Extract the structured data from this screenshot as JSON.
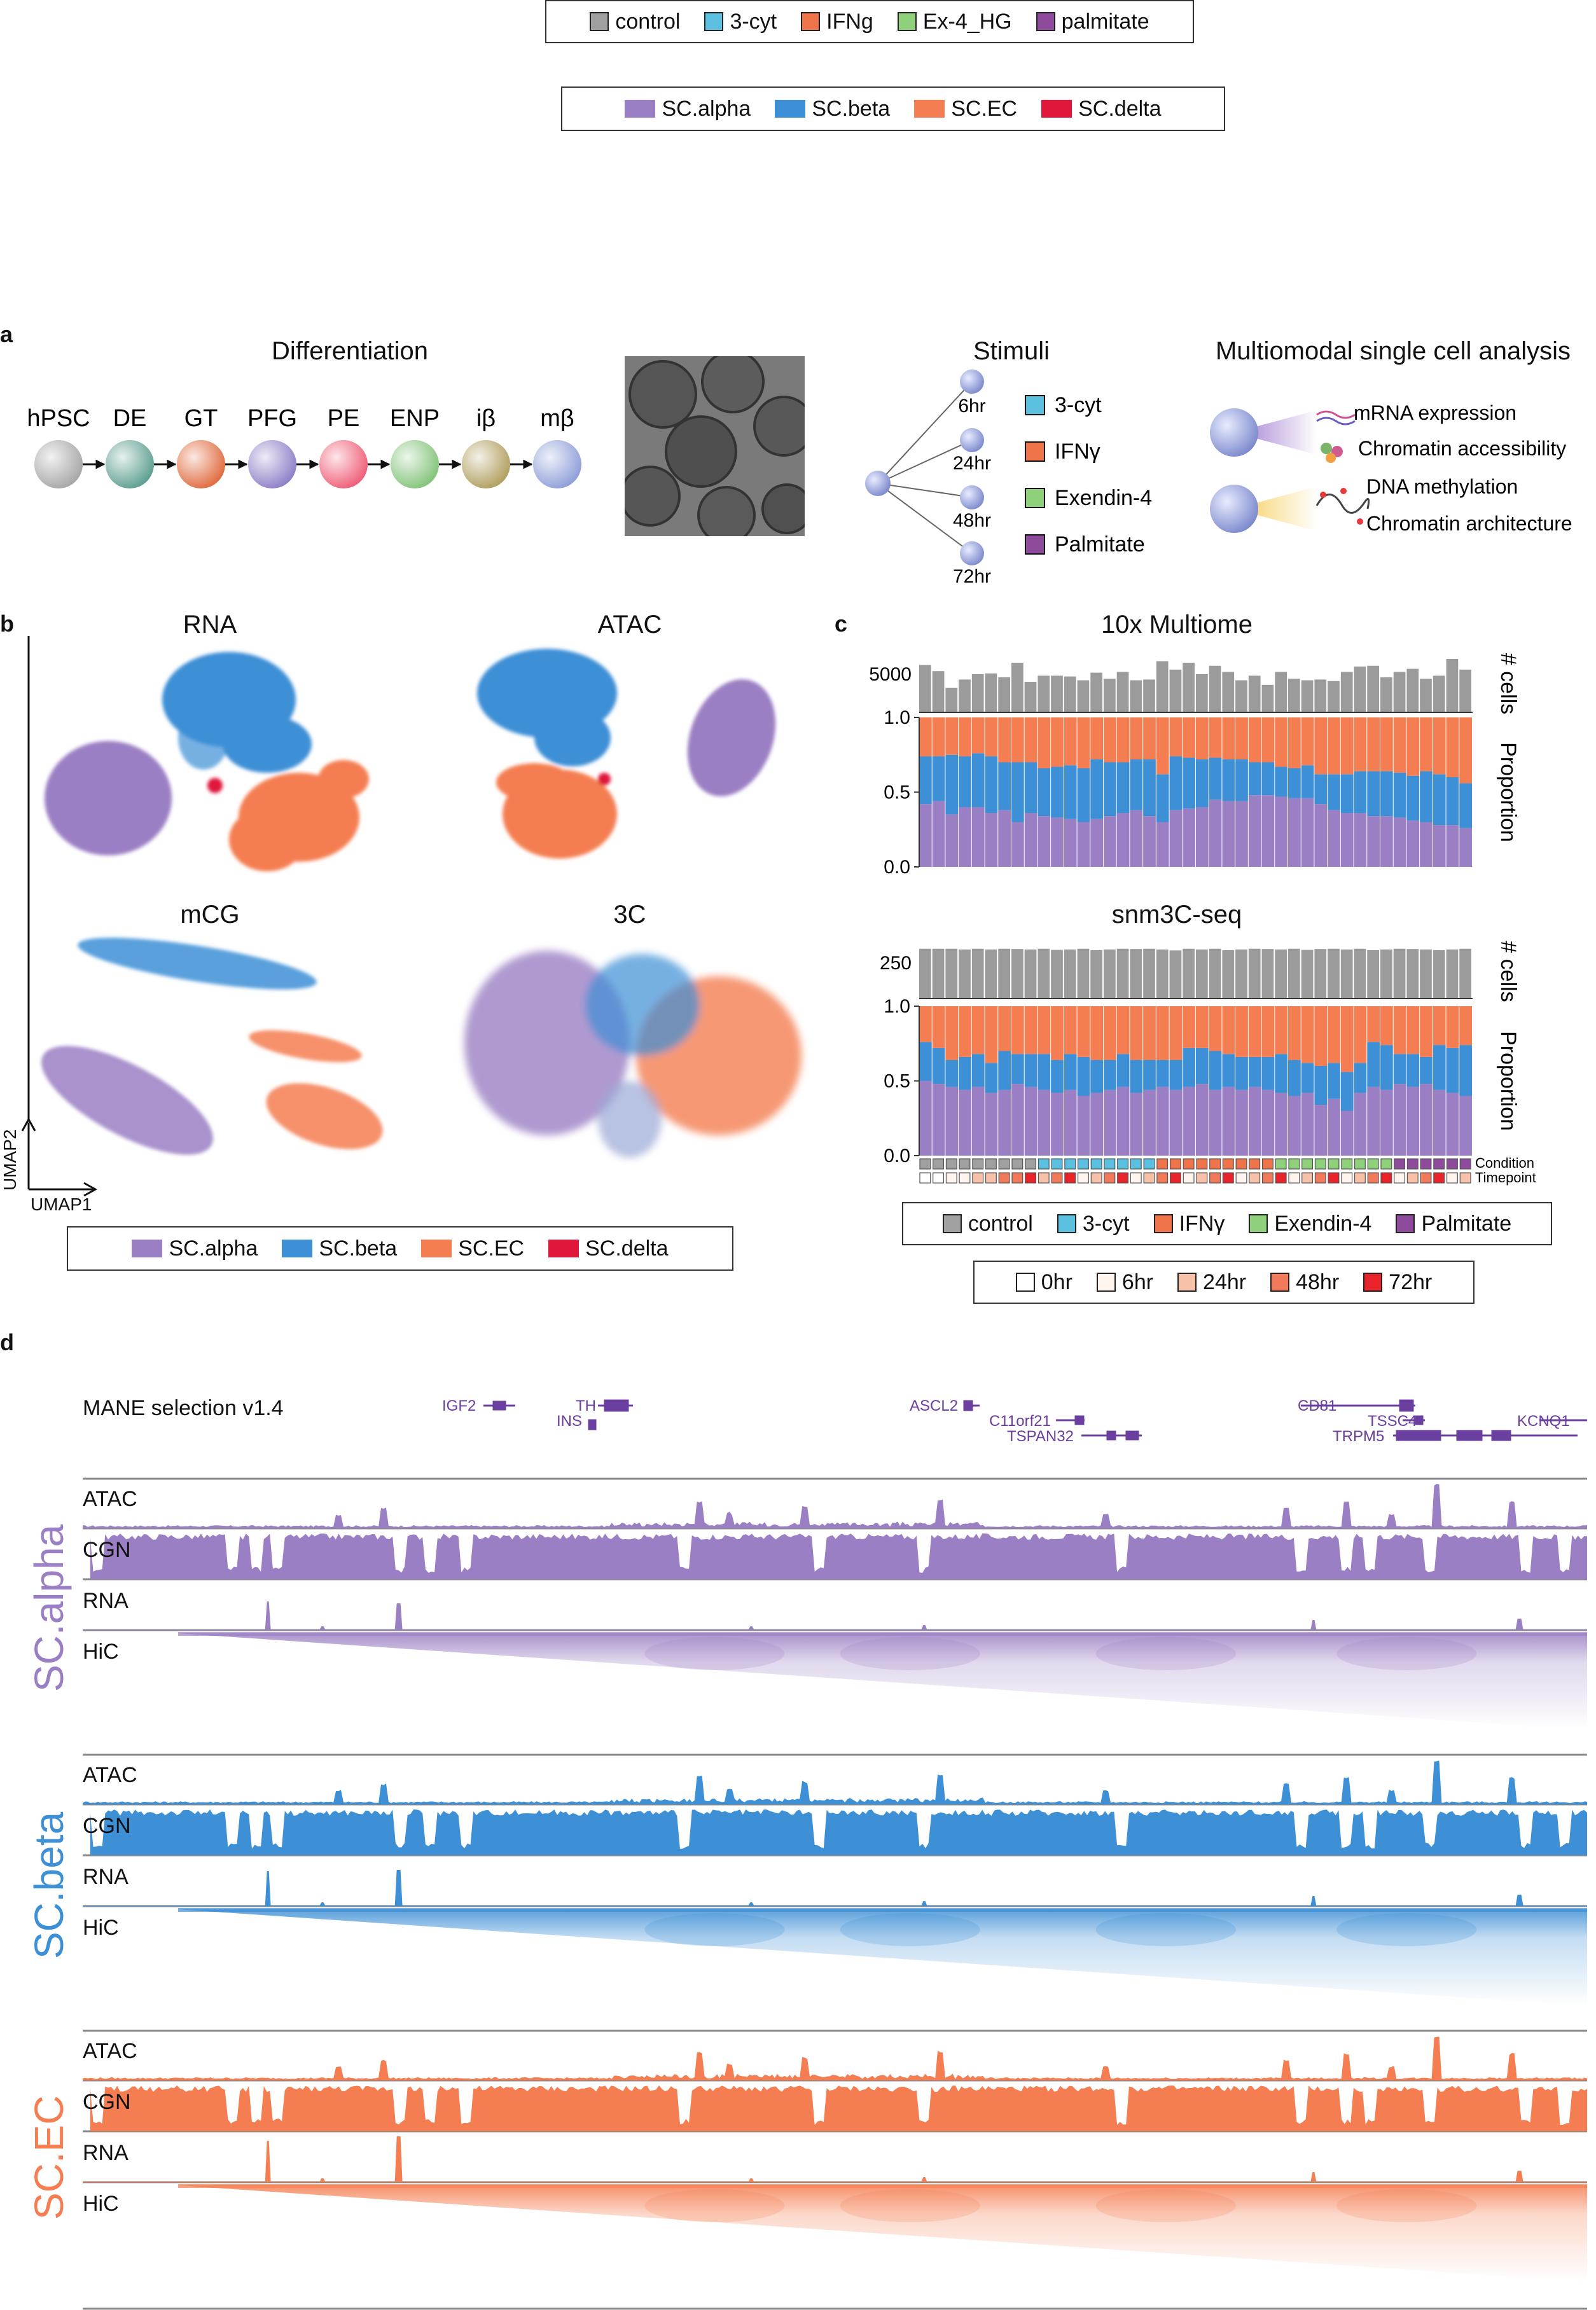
{
  "legend_conditions": {
    "items": [
      {
        "label": "control",
        "color": "#a0a0a0"
      },
      {
        "label": "3-cyt",
        "color": "#5bc0e0"
      },
      {
        "label": "IFNg",
        "color": "#f0744a"
      },
      {
        "label": "Ex-4_HG",
        "color": "#8fd07a"
      },
      {
        "label": "palmitate",
        "color": "#8e4b9c"
      }
    ]
  },
  "legend_celltypes_top": {
    "items": [
      {
        "label": "SC.alpha",
        "color": "#9b7fc4"
      },
      {
        "label": "SC.beta",
        "color": "#3d8fd6"
      },
      {
        "label": "SC.EC",
        "color": "#f47e51"
      },
      {
        "label": "SC.delta",
        "color": "#e0163b"
      }
    ]
  },
  "panel_a": {
    "letter": "a",
    "differentiation_title": "Differentiation",
    "stages": [
      {
        "label": "hPSC",
        "color": "#a7a7a7"
      },
      {
        "label": "DE",
        "color": "#5e9f92"
      },
      {
        "label": "GT",
        "color": "#e06c40"
      },
      {
        "label": "PFG",
        "color": "#8f7fc8"
      },
      {
        "label": "PE",
        "color": "#ef5f78"
      },
      {
        "label": "ENP",
        "color": "#84c47b"
      },
      {
        "label": "iβ",
        "color": "#b1a060"
      },
      {
        "label": "mβ",
        "color": "#8f9fd9"
      }
    ],
    "stimuli_title": "Stimuli",
    "timepoints": [
      "6hr",
      "24hr",
      "48hr",
      "72hr"
    ],
    "stimuli": [
      {
        "label": "3-cyt",
        "color": "#5bc0e0"
      },
      {
        "label": "IFNγ",
        "color": "#f0744a"
      },
      {
        "label": "Exendin-4",
        "color": "#8fd07a"
      },
      {
        "label": "Palmitate",
        "color": "#8e4b9c"
      }
    ],
    "multimodal_title": "Multiomodal single cell analysis",
    "modalities": [
      "mRNA expression",
      "Chromatin accessibility",
      "DNA methylation",
      "Chromatin architecture"
    ]
  },
  "panel_b": {
    "letter": "b",
    "umap_titles": [
      "RNA",
      "ATAC",
      "mCG",
      "3C"
    ],
    "axis_x": "UMAP1",
    "axis_y": "UMAP2",
    "legend": [
      {
        "label": "SC.alpha",
        "color": "#9b7fc4"
      },
      {
        "label": "SC.beta",
        "color": "#3d8fd6"
      },
      {
        "label": "SC.EC",
        "color": "#f47e51"
      },
      {
        "label": "SC.delta",
        "color": "#e0163b"
      }
    ]
  },
  "panel_c": {
    "letter": "c",
    "chart_data": [
      {
        "type": "bar",
        "title": "10x Multiome",
        "ylabel": "# cells",
        "yticks": [
          "5000"
        ],
        "values": [
          6200,
          5400,
          3200,
          4300,
          5000,
          5100,
          4600,
          6500,
          4000,
          4800,
          4800,
          4700,
          4200,
          5200,
          4400,
          5300,
          4200,
          4300,
          6700,
          5600,
          6500,
          5000,
          6100,
          5300,
          4200,
          4800,
          3600,
          5300,
          4400,
          4200,
          4300,
          4100,
          5300,
          6000,
          6100,
          4600,
          5300,
          5700,
          4400,
          4800,
          7000,
          5600
        ],
        "ylim": [
          0,
          7500
        ]
      },
      {
        "type": "bar",
        "title": "",
        "ylabel": "Proportion",
        "yticks": [
          "0.0",
          "0.5",
          "1.0"
        ],
        "ylim": [
          0,
          1
        ],
        "series": [
          {
            "name": "SC.alpha",
            "values": [
              0.42,
              0.44,
              0.35,
              0.4,
              0.4,
              0.36,
              0.38,
              0.3,
              0.36,
              0.34,
              0.33,
              0.32,
              0.3,
              0.32,
              0.34,
              0.36,
              0.38,
              0.34,
              0.3,
              0.38,
              0.39,
              0.4,
              0.45,
              0.44,
              0.44,
              0.48,
              0.48,
              0.47,
              0.46,
              0.46,
              0.42,
              0.38,
              0.36,
              0.36,
              0.34,
              0.34,
              0.33,
              0.31,
              0.3,
              0.28,
              0.28,
              0.26
            ]
          },
          {
            "name": "SC.beta",
            "values": [
              0.32,
              0.3,
              0.4,
              0.34,
              0.36,
              0.38,
              0.32,
              0.4,
              0.34,
              0.32,
              0.34,
              0.36,
              0.36,
              0.4,
              0.36,
              0.34,
              0.34,
              0.38,
              0.32,
              0.36,
              0.34,
              0.32,
              0.28,
              0.28,
              0.28,
              0.22,
              0.22,
              0.2,
              0.2,
              0.22,
              0.2,
              0.24,
              0.26,
              0.28,
              0.3,
              0.3,
              0.3,
              0.3,
              0.34,
              0.34,
              0.32,
              0.3
            ]
          },
          {
            "name": "SC.EC",
            "values": [
              0.26,
              0.26,
              0.25,
              0.26,
              0.24,
              0.26,
              0.3,
              0.3,
              0.3,
              0.34,
              0.33,
              0.32,
              0.34,
              0.28,
              0.3,
              0.3,
              0.28,
              0.28,
              0.38,
              0.26,
              0.27,
              0.28,
              0.27,
              0.28,
              0.28,
              0.3,
              0.3,
              0.33,
              0.34,
              0.32,
              0.38,
              0.38,
              0.38,
              0.36,
              0.36,
              0.36,
              0.37,
              0.39,
              0.36,
              0.38,
              0.4,
              0.44
            ]
          }
        ]
      },
      {
        "type": "bar",
        "title": "snm3C-seq",
        "ylabel": "# cells",
        "yticks": [
          "250"
        ],
        "values": [
          350,
          350,
          350,
          345,
          350,
          345,
          350,
          348,
          345,
          350,
          342,
          345,
          350,
          340,
          345,
          350,
          348,
          350,
          345,
          338,
          350,
          345,
          350,
          340,
          345,
          350,
          348,
          345,
          350,
          342,
          348,
          350,
          345,
          350,
          340,
          345,
          350,
          348,
          345,
          340,
          345,
          350
        ],
        "ylim": [
          0,
          380
        ]
      },
      {
        "type": "bar",
        "title": "",
        "ylabel": "Proportion",
        "yticks": [
          "0.0",
          "0.5",
          "1.0"
        ],
        "ylim": [
          0,
          1
        ],
        "series": [
          {
            "name": "SC.alpha",
            "values": [
              0.5,
              0.48,
              0.46,
              0.44,
              0.46,
              0.42,
              0.44,
              0.48,
              0.46,
              0.44,
              0.42,
              0.44,
              0.4,
              0.42,
              0.44,
              0.46,
              0.42,
              0.44,
              0.46,
              0.44,
              0.46,
              0.48,
              0.44,
              0.46,
              0.44,
              0.46,
              0.44,
              0.42,
              0.4,
              0.42,
              0.34,
              0.38,
              0.3,
              0.42,
              0.46,
              0.44,
              0.48,
              0.46,
              0.48,
              0.44,
              0.42,
              0.4
            ]
          },
          {
            "name": "SC.beta",
            "values": [
              0.26,
              0.24,
              0.18,
              0.22,
              0.22,
              0.2,
              0.26,
              0.2,
              0.22,
              0.24,
              0.22,
              0.24,
              0.26,
              0.22,
              0.2,
              0.22,
              0.22,
              0.2,
              0.18,
              0.2,
              0.26,
              0.24,
              0.26,
              0.22,
              0.22,
              0.2,
              0.22,
              0.26,
              0.24,
              0.2,
              0.26,
              0.24,
              0.26,
              0.2,
              0.3,
              0.3,
              0.2,
              0.22,
              0.18,
              0.3,
              0.3,
              0.34
            ]
          },
          {
            "name": "SC.EC",
            "values": [
              0.24,
              0.28,
              0.36,
              0.34,
              0.32,
              0.38,
              0.3,
              0.32,
              0.32,
              0.32,
              0.36,
              0.32,
              0.34,
              0.36,
              0.36,
              0.32,
              0.36,
              0.36,
              0.36,
              0.36,
              0.28,
              0.28,
              0.3,
              0.32,
              0.34,
              0.34,
              0.34,
              0.32,
              0.36,
              0.38,
              0.4,
              0.38,
              0.44,
              0.38,
              0.24,
              0.26,
              0.32,
              0.32,
              0.34,
              0.26,
              0.28,
              0.26
            ]
          }
        ]
      }
    ],
    "ytick_zero": "0.0",
    "row_labels": [
      "Condition",
      "Timepoint"
    ],
    "condition_legend": [
      {
        "label": "control",
        "color": "#a0a0a0"
      },
      {
        "label": "3-cyt",
        "color": "#5bc0e0"
      },
      {
        "label": "IFNγ",
        "color": "#f0744a"
      },
      {
        "label": "Exendin-4",
        "color": "#8fd07a"
      },
      {
        "label": "Palmitate",
        "color": "#8e4b9c"
      }
    ],
    "timepoint_legend": [
      {
        "label": "0hr",
        "color": "#ffffff"
      },
      {
        "label": "6hr",
        "color": "#fff5ee"
      },
      {
        "label": "24hr",
        "color": "#f7c0a8"
      },
      {
        "label": "48hr",
        "color": "#f07a5a"
      },
      {
        "label": "72hr",
        "color": "#e8242a"
      }
    ]
  },
  "panel_d": {
    "letter": "d",
    "gene_track_title": "MANE selection v1.4",
    "genes": [
      "IGF2",
      "TH",
      "INS",
      "ASCL2",
      "C11orf21",
      "TSPAN32",
      "CD81",
      "TSSC4",
      "TRPM5",
      "KCNQ1"
    ],
    "groups": [
      {
        "name": "SC.alpha",
        "color": "#9b7fc4",
        "tracks": [
          "ATAC",
          "CGN",
          "RNA",
          "HiC"
        ]
      },
      {
        "name": "SC.beta",
        "color": "#3d8fd6",
        "tracks": [
          "ATAC",
          "CGN",
          "RNA",
          "HiC"
        ]
      },
      {
        "name": "SC.EC",
        "color": "#f47e51",
        "tracks": [
          "ATAC",
          "CGN",
          "RNA",
          "HiC"
        ]
      }
    ]
  }
}
